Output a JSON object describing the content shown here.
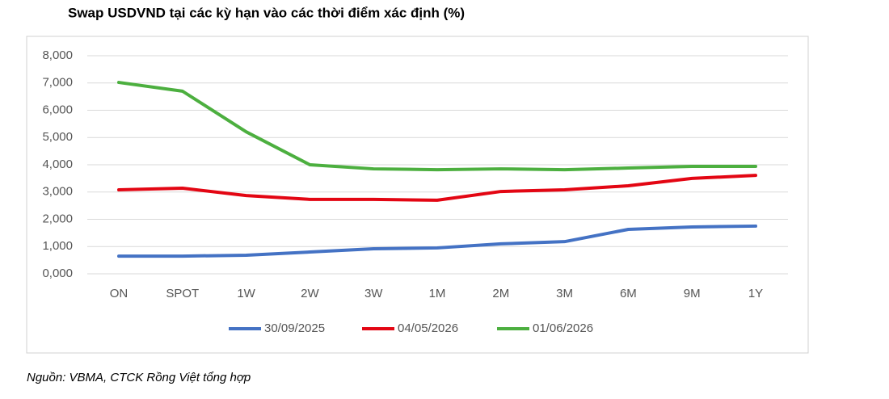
{
  "chart_data": {
    "type": "line",
    "title": "Swap USDVND tại các kỳ hạn vào các thời điểm xác định (%)",
    "source": "Nguồn: VBMA, CTCK Rồng Việt tổng hợp",
    "categories": [
      "ON",
      "SPOT",
      "1W",
      "2W",
      "3W",
      "1M",
      "2M",
      "3M",
      "6M",
      "9M",
      "1Y"
    ],
    "series": [
      {
        "name": "30/09/2025",
        "color": "#4472c4",
        "values": [
          0.65,
          0.65,
          0.68,
          0.8,
          0.92,
          0.95,
          1.1,
          1.18,
          1.63,
          1.72,
          1.75
        ]
      },
      {
        "name": "04/05/2026",
        "color": "#e30613",
        "values": [
          3.08,
          3.14,
          2.87,
          2.73,
          2.73,
          2.7,
          3.02,
          3.08,
          3.23,
          3.5,
          3.61
        ]
      },
      {
        "name": "01/06/2026",
        "color": "#4caf3f",
        "values": [
          7.02,
          6.7,
          5.21,
          4.0,
          3.85,
          3.82,
          3.85,
          3.82,
          3.88,
          3.94,
          3.94
        ]
      }
    ],
    "ylim": [
      0,
      8
    ],
    "yticks": [
      {
        "value": 0,
        "label": "0,000"
      },
      {
        "value": 1,
        "label": "1,000"
      },
      {
        "value": 2,
        "label": "2,000"
      },
      {
        "value": 3,
        "label": "3,000"
      },
      {
        "value": 4,
        "label": "4,000"
      },
      {
        "value": 5,
        "label": "5,000"
      },
      {
        "value": 6,
        "label": "6,000"
      },
      {
        "value": 7,
        "label": "7,000"
      },
      {
        "value": 8,
        "label": "8,000"
      }
    ],
    "grid": true,
    "legend": "bottom"
  }
}
